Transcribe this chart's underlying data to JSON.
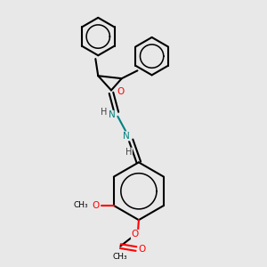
{
  "background_color": "#e8e8e8",
  "bond_color": "#000000",
  "bond_width": 1.5,
  "atom_colors": {
    "N": "#008080",
    "O": "#ff0000",
    "C": "#000000",
    "H": "#404040"
  },
  "figsize": [
    3.0,
    3.0
  ],
  "dpi": 100,
  "xlim": [
    0,
    10
  ],
  "ylim": [
    0,
    10
  ]
}
